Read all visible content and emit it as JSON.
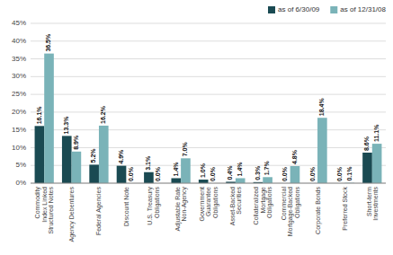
{
  "chart_data": {
    "type": "bar",
    "categories": [
      "Commodity\nIndex Linked\nStructured Notes",
      "Agency Debentures",
      "Federal Agencies",
      "Discount Note",
      "U.S. Treasury\nObligations",
      "Adjustable Rate\nNon-Agency",
      "Government\nGuarantee\nObligations",
      "Asset-Backed\nSecurities",
      "Collateralized\nMortgage\nObligations",
      "Commercial\nMortgage-Backed\nObligations",
      "Corporate Bonds",
      "Preferred Stock",
      "Short-term\nInvestments"
    ],
    "series": [
      {
        "name": "as of 6/30/09",
        "color": "#1a4a52",
        "values": [
          16.1,
          13.3,
          5.2,
          4.9,
          3.1,
          1.4,
          1.0,
          0.4,
          0.3,
          0.0,
          0.0,
          0.0,
          8.6
        ],
        "value_labels": [
          "16.1%",
          "13.3%",
          "5.2%",
          "4.9%",
          "3.1%",
          "1.4%",
          "1.0%",
          "0.4%",
          "0.3%",
          "0.0%",
          "0.0%",
          "0.0%",
          "8.6%"
        ]
      },
      {
        "name": "as of 12/31/08",
        "color": "#7ab3b8",
        "values": [
          36.5,
          8.9,
          16.2,
          0.0,
          0.0,
          7.0,
          0.0,
          1.4,
          1.7,
          4.8,
          18.4,
          0.1,
          11.1
        ],
        "value_labels": [
          "36.5%",
          "8.9%",
          "16.2%",
          "0.0%",
          "0.0%",
          "7.0%",
          "0.0%",
          "1.4%",
          "1.7%",
          "4.8%",
          "18.4%",
          "0.1%",
          "11.1%"
        ]
      }
    ],
    "ylim": [
      0,
      45
    ],
    "yticks": [
      {
        "value": 0,
        "label": "0%"
      },
      {
        "value": 5,
        "label": "5%"
      },
      {
        "value": 10,
        "label": "10%"
      },
      {
        "value": 15,
        "label": "15%"
      },
      {
        "value": 20,
        "label": "20%"
      },
      {
        "value": 25,
        "label": "25%"
      },
      {
        "value": 30,
        "label": "30%"
      },
      {
        "value": 35,
        "label": "35%"
      },
      {
        "value": 40,
        "label": "40%"
      },
      {
        "value": 45,
        "label": "45%"
      }
    ],
    "grid": true,
    "legend": "upper right",
    "data_labels": true
  }
}
